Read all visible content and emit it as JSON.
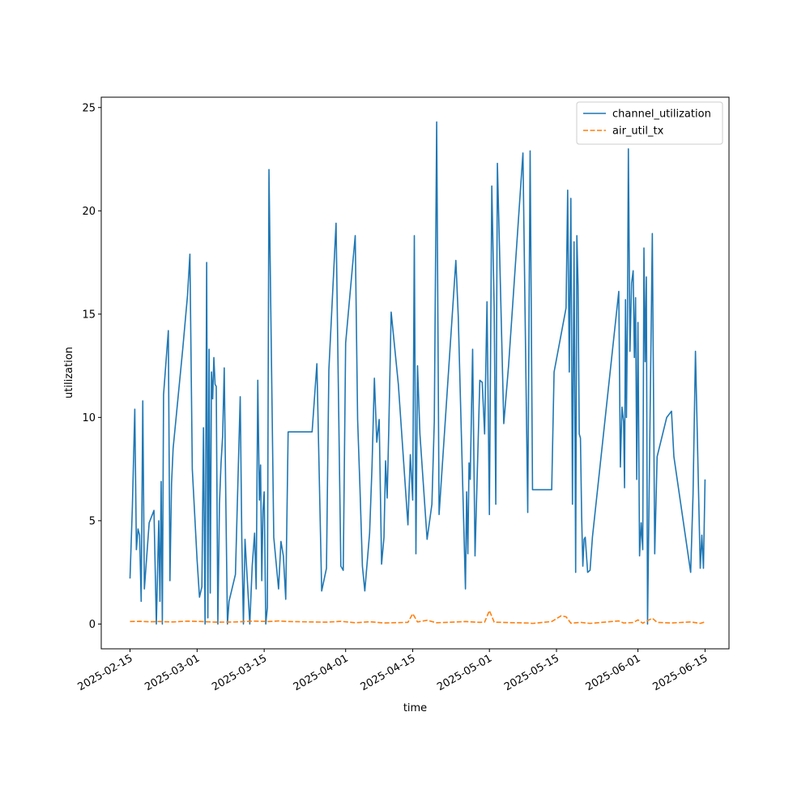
{
  "chart_data": {
    "type": "line",
    "xlabel": "time",
    "ylabel": "utilization",
    "xlim": [
      "2025-02-09",
      "2025-06-20"
    ],
    "ylim": [
      -1.2,
      25.5
    ],
    "x_ticks": [
      "2025-02-15",
      "2025-03-01",
      "2025-03-15",
      "2025-04-01",
      "2025-04-15",
      "2025-05-01",
      "2025-05-15",
      "2025-06-01",
      "2025-06-15"
    ],
    "y_ticks": [
      0,
      5,
      10,
      15,
      20,
      25
    ],
    "y_tick_labels": [
      "0",
      "5",
      "10",
      "15",
      "20",
      "25"
    ],
    "legend_position": "top-right",
    "grid": false,
    "series": [
      {
        "name": "channel_utilization",
        "color": "#1f77b4",
        "dash": "solid",
        "points": [
          [
            "2025-02-15",
            2.2
          ],
          [
            "2025-02-15",
            5.7
          ],
          [
            "2025-02-16",
            10.4
          ],
          [
            "2025-02-16",
            3.6
          ],
          [
            "2025-02-16",
            4.6
          ],
          [
            "2025-02-17",
            4.3
          ],
          [
            "2025-02-17",
            1.1
          ],
          [
            "2025-02-17",
            10.8
          ],
          [
            "2025-02-18",
            1.7
          ],
          [
            "2025-02-19",
            4.9
          ],
          [
            "2025-02-20",
            5.5
          ],
          [
            "2025-02-20",
            0.0
          ],
          [
            "2025-02-21",
            5.0
          ],
          [
            "2025-02-21",
            1.1
          ],
          [
            "2025-02-21",
            6.9
          ],
          [
            "2025-02-21",
            0.0
          ],
          [
            "2025-02-22",
            11.1
          ],
          [
            "2025-02-23",
            14.2
          ],
          [
            "2025-02-23",
            2.1
          ],
          [
            "2025-02-23",
            6.8
          ],
          [
            "2025-02-24",
            8.5
          ],
          [
            "2025-02-25",
            10.9
          ],
          [
            "2025-02-26",
            13.3
          ],
          [
            "2025-02-27",
            15.9
          ],
          [
            "2025-02-27",
            17.9
          ],
          [
            "2025-02-28",
            7.5
          ],
          [
            "2025-03-01",
            3.1
          ],
          [
            "2025-03-01",
            1.3
          ],
          [
            "2025-03-02",
            1.8
          ],
          [
            "2025-03-02",
            9.5
          ],
          [
            "2025-03-02",
            0.0
          ],
          [
            "2025-03-03",
            17.5
          ],
          [
            "2025-03-03",
            0.3
          ],
          [
            "2025-03-03",
            13.3
          ],
          [
            "2025-03-03",
            1.5
          ],
          [
            "2025-03-04",
            12.2
          ],
          [
            "2025-03-04",
            10.9
          ],
          [
            "2025-03-04",
            12.9
          ],
          [
            "2025-03-04",
            11.6
          ],
          [
            "2025-03-05",
            11.5
          ],
          [
            "2025-03-05",
            0.0
          ],
          [
            "2025-03-05",
            5.8
          ],
          [
            "2025-03-06",
            7.8
          ],
          [
            "2025-03-06",
            9.1
          ],
          [
            "2025-03-06",
            12.4
          ],
          [
            "2025-03-07",
            5.9
          ],
          [
            "2025-03-07",
            0.0
          ],
          [
            "2025-03-07",
            1.1
          ],
          [
            "2025-03-09",
            2.4
          ],
          [
            "2025-03-10",
            11.0
          ],
          [
            "2025-03-10",
            4.1
          ],
          [
            "2025-03-10",
            0.0
          ],
          [
            "2025-03-11",
            4.1
          ],
          [
            "2025-03-12",
            0.0
          ],
          [
            "2025-03-12",
            2.8
          ],
          [
            "2025-03-13",
            4.4
          ],
          [
            "2025-03-13",
            1.7
          ],
          [
            "2025-03-13",
            11.8
          ],
          [
            "2025-03-14",
            6.0
          ],
          [
            "2025-03-14",
            7.7
          ],
          [
            "2025-03-14",
            2.1
          ],
          [
            "2025-03-14",
            5.5
          ],
          [
            "2025-03-15",
            6.4
          ],
          [
            "2025-03-15",
            0.0
          ],
          [
            "2025-03-15",
            0.8
          ],
          [
            "2025-03-16",
            22.0
          ],
          [
            "2025-03-17",
            4.2
          ],
          [
            "2025-03-18",
            1.7
          ],
          [
            "2025-03-18",
            4.0
          ],
          [
            "2025-03-19",
            3.3
          ],
          [
            "2025-03-19",
            1.2
          ],
          [
            "2025-03-20",
            9.3
          ],
          [
            "2025-03-25",
            9.3
          ],
          [
            "2025-03-26",
            12.6
          ],
          [
            "2025-03-27",
            1.6
          ],
          [
            "2025-03-28",
            2.7
          ],
          [
            "2025-03-28",
            12.3
          ],
          [
            "2025-03-30",
            19.4
          ],
          [
            "2025-03-31",
            2.8
          ],
          [
            "2025-03-31",
            2.6
          ],
          [
            "2025-04-01",
            13.6
          ],
          [
            "2025-04-03",
            18.8
          ],
          [
            "2025-04-03",
            9.9
          ],
          [
            "2025-04-04",
            6.5
          ],
          [
            "2025-04-04",
            2.8
          ],
          [
            "2025-04-05",
            1.6
          ],
          [
            "2025-04-06",
            4.4
          ],
          [
            "2025-04-06",
            7.6
          ],
          [
            "2025-04-07",
            11.9
          ],
          [
            "2025-04-07",
            8.8
          ],
          [
            "2025-04-08",
            9.9
          ],
          [
            "2025-04-08",
            2.9
          ],
          [
            "2025-04-09",
            4.2
          ],
          [
            "2025-04-09",
            7.9
          ],
          [
            "2025-04-09",
            6.1
          ],
          [
            "2025-04-10",
            9.4
          ],
          [
            "2025-04-10",
            15.1
          ],
          [
            "2025-04-12",
            11.6
          ],
          [
            "2025-04-14",
            4.8
          ],
          [
            "2025-04-14",
            8.2
          ],
          [
            "2025-04-15",
            6.0
          ],
          [
            "2025-04-15",
            18.8
          ],
          [
            "2025-04-15",
            3.4
          ],
          [
            "2025-04-16",
            12.5
          ],
          [
            "2025-04-16",
            9.2
          ],
          [
            "2025-04-18",
            4.1
          ],
          [
            "2025-04-19",
            5.8
          ],
          [
            "2025-04-19",
            9.8
          ],
          [
            "2025-04-20",
            24.3
          ],
          [
            "2025-04-20",
            5.3
          ],
          [
            "2025-04-24",
            17.6
          ],
          [
            "2025-04-24",
            14.9
          ],
          [
            "2025-04-26",
            1.7
          ],
          [
            "2025-04-26",
            6.4
          ],
          [
            "2025-04-26",
            3.4
          ],
          [
            "2025-04-26",
            7.8
          ],
          [
            "2025-04-27",
            7.0
          ],
          [
            "2025-04-27",
            13.3
          ],
          [
            "2025-04-28",
            3.3
          ],
          [
            "2025-04-29",
            11.8
          ],
          [
            "2025-04-29",
            11.7
          ],
          [
            "2025-04-30",
            9.2
          ],
          [
            "2025-04-30",
            15.6
          ],
          [
            "2025-05-01",
            5.3
          ],
          [
            "2025-05-01",
            21.2
          ],
          [
            "2025-05-02",
            15.3
          ],
          [
            "2025-05-02",
            5.8
          ],
          [
            "2025-05-02",
            22.3
          ],
          [
            "2025-05-03",
            19.2
          ],
          [
            "2025-05-04",
            9.7
          ],
          [
            "2025-05-05",
            12.5
          ],
          [
            "2025-05-08",
            22.8
          ],
          [
            "2025-05-09",
            5.4
          ],
          [
            "2025-05-09",
            22.9
          ],
          [
            "2025-05-10",
            6.5
          ],
          [
            "2025-05-14",
            6.5
          ],
          [
            "2025-05-14",
            12.2
          ],
          [
            "2025-05-17",
            15.3
          ],
          [
            "2025-05-17",
            21.0
          ],
          [
            "2025-05-17",
            12.2
          ],
          [
            "2025-05-18",
            20.6
          ],
          [
            "2025-05-18",
            5.8
          ],
          [
            "2025-05-18",
            18.5
          ],
          [
            "2025-05-19",
            2.5
          ],
          [
            "2025-05-19",
            18.8
          ],
          [
            "2025-05-19",
            16.4
          ],
          [
            "2025-05-19",
            9.2
          ],
          [
            "2025-05-20",
            9.0
          ],
          [
            "2025-05-20",
            5.2
          ],
          [
            "2025-05-20",
            2.8
          ],
          [
            "2025-05-20",
            4.1
          ],
          [
            "2025-05-21",
            4.2
          ],
          [
            "2025-05-21",
            2.5
          ],
          [
            "2025-05-22",
            2.6
          ],
          [
            "2025-05-22",
            4.2
          ],
          [
            "2025-05-28",
            16.1
          ],
          [
            "2025-05-28",
            7.6
          ],
          [
            "2025-05-28",
            10.5
          ],
          [
            "2025-05-29",
            9.8
          ],
          [
            "2025-05-29",
            6.6
          ],
          [
            "2025-05-29",
            15.7
          ],
          [
            "2025-05-29",
            10.0
          ],
          [
            "2025-05-29",
            14.6
          ],
          [
            "2025-05-30",
            23.0
          ],
          [
            "2025-05-30",
            13.2
          ],
          [
            "2025-05-30",
            16.5
          ],
          [
            "2025-05-31",
            17.1
          ],
          [
            "2025-05-31",
            12.9
          ],
          [
            "2025-05-31",
            15.8
          ],
          [
            "2025-05-31",
            7.0
          ],
          [
            "2025-06-01",
            14.6
          ],
          [
            "2025-06-01",
            3.3
          ],
          [
            "2025-06-01",
            4.9
          ],
          [
            "2025-06-02",
            3.6
          ],
          [
            "2025-06-02",
            18.2
          ],
          [
            "2025-06-02",
            12.7
          ],
          [
            "2025-06-02",
            16.8
          ],
          [
            "2025-06-03",
            0.0
          ],
          [
            "2025-06-04",
            18.9
          ],
          [
            "2025-06-04",
            3.4
          ],
          [
            "2025-06-05",
            8.1
          ],
          [
            "2025-06-07",
            10.0
          ],
          [
            "2025-06-08",
            10.3
          ],
          [
            "2025-06-08",
            8.1
          ],
          [
            "2025-06-12",
            2.5
          ],
          [
            "2025-06-12",
            6.3
          ],
          [
            "2025-06-13",
            13.2
          ],
          [
            "2025-06-14",
            2.7
          ],
          [
            "2025-06-14",
            4.3
          ],
          [
            "2025-06-14",
            2.7
          ],
          [
            "2025-06-15",
            7.0
          ]
        ]
      },
      {
        "name": "air_util_tx",
        "color": "#ff7f0e",
        "dash": "dashed",
        "points": [
          [
            "2025-02-15",
            0.12
          ],
          [
            "2025-02-17",
            0.13
          ],
          [
            "2025-02-19",
            0.11
          ],
          [
            "2025-02-21",
            0.12
          ],
          [
            "2025-02-24",
            0.1
          ],
          [
            "2025-02-27",
            0.14
          ],
          [
            "2025-03-02",
            0.12
          ],
          [
            "2025-03-05",
            0.09
          ],
          [
            "2025-03-09",
            0.1
          ],
          [
            "2025-03-13",
            0.14
          ],
          [
            "2025-03-16",
            0.12
          ],
          [
            "2025-03-18",
            0.15
          ],
          [
            "2025-03-20",
            0.12
          ],
          [
            "2025-03-25",
            0.1
          ],
          [
            "2025-03-28",
            0.09
          ],
          [
            "2025-03-31",
            0.13
          ],
          [
            "2025-04-03",
            0.06
          ],
          [
            "2025-04-06",
            0.11
          ],
          [
            "2025-04-09",
            0.05
          ],
          [
            "2025-04-14",
            0.08
          ],
          [
            "2025-04-15",
            0.5
          ],
          [
            "2025-04-16",
            0.1
          ],
          [
            "2025-04-18",
            0.18
          ],
          [
            "2025-04-20",
            0.06
          ],
          [
            "2025-04-24",
            0.1
          ],
          [
            "2025-04-26",
            0.12
          ],
          [
            "2025-04-29",
            0.08
          ],
          [
            "2025-04-30",
            0.09
          ],
          [
            "2025-05-01",
            0.65
          ],
          [
            "2025-05-02",
            0.09
          ],
          [
            "2025-05-05",
            0.07
          ],
          [
            "2025-05-09",
            0.05
          ],
          [
            "2025-05-10",
            0.03
          ],
          [
            "2025-05-14",
            0.12
          ],
          [
            "2025-05-16",
            0.4
          ],
          [
            "2025-05-17",
            0.35
          ],
          [
            "2025-05-18",
            0.04
          ],
          [
            "2025-05-20",
            0.08
          ],
          [
            "2025-05-22",
            0.03
          ],
          [
            "2025-05-28",
            0.15
          ],
          [
            "2025-05-29",
            0.05
          ],
          [
            "2025-05-31",
            0.07
          ],
          [
            "2025-06-01",
            0.2
          ],
          [
            "2025-06-02",
            0.04
          ],
          [
            "2025-06-04",
            0.28
          ],
          [
            "2025-06-05",
            0.08
          ],
          [
            "2025-06-08",
            0.05
          ],
          [
            "2025-06-12",
            0.1
          ],
          [
            "2025-06-14",
            0.03
          ],
          [
            "2025-06-15",
            0.1
          ]
        ]
      }
    ]
  }
}
